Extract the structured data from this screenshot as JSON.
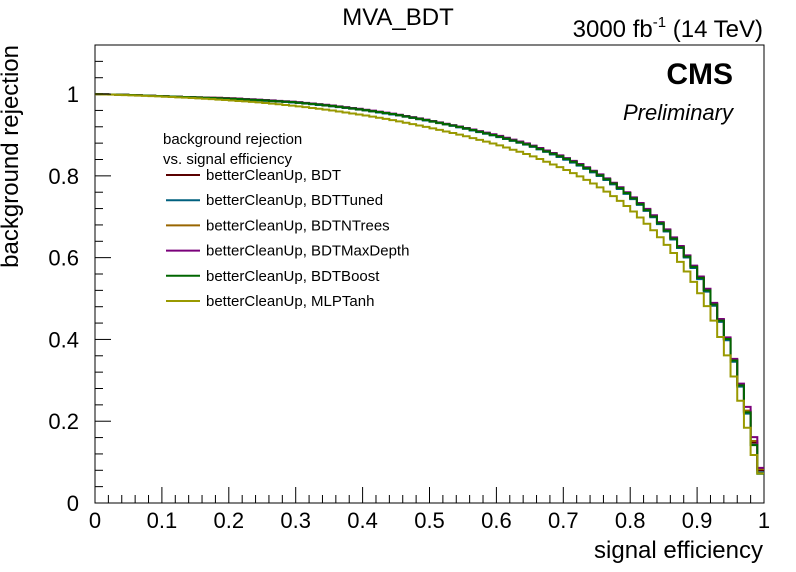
{
  "chart_data": {
    "type": "line",
    "title": "MVA_BDT",
    "lumi_label": {
      "prefix": "3000 fb",
      "superscript": "-1",
      "suffix": " (14 TeV)"
    },
    "experiment": "CMS",
    "experiment_status": "Preliminary",
    "xlabel": "signal efficiency",
    "ylabel": "background rejection",
    "xlim": [
      0,
      1
    ],
    "ylim": [
      0,
      1.12
    ],
    "x_ticks": [
      "0",
      "0.1",
      "0.2",
      "0.3",
      "0.4",
      "0.5",
      "0.6",
      "0.7",
      "0.8",
      "0.9",
      "1"
    ],
    "y_ticks": [
      "0",
      "0.2",
      "0.4",
      "0.6",
      "0.8",
      "1"
    ],
    "legend": {
      "header_line1": "background rejection",
      "header_line2": "vs. signal efficiency",
      "placement": "top-left"
    },
    "x": [
      0.0,
      0.05,
      0.1,
      0.15,
      0.2,
      0.25,
      0.3,
      0.35,
      0.4,
      0.45,
      0.5,
      0.55,
      0.6,
      0.65,
      0.7,
      0.72,
      0.74,
      0.76,
      0.78,
      0.8,
      0.82,
      0.84,
      0.86,
      0.88,
      0.9,
      0.91,
      0.92,
      0.93,
      0.94,
      0.95,
      0.96,
      0.97,
      0.98,
      0.99,
      1.0
    ],
    "series": [
      {
        "name": "betterCleanUp, BDT",
        "color": "#5a0000",
        "values": [
          1.0,
          0.998,
          0.995,
          0.992,
          0.99,
          0.985,
          0.98,
          0.972,
          0.962,
          0.95,
          0.935,
          0.918,
          0.898,
          0.875,
          0.845,
          0.831,
          0.815,
          0.797,
          0.776,
          0.752,
          0.725,
          0.694,
          0.658,
          0.616,
          0.566,
          0.537,
          0.505,
          0.468,
          0.426,
          0.378,
          0.321,
          0.256,
          0.19,
          0.105,
          0.055
        ]
      },
      {
        "name": "betterCleanUp, BDTTuned",
        "color": "#00607f",
        "values": [
          1.0,
          0.998,
          0.995,
          0.992,
          0.989,
          0.984,
          0.979,
          0.971,
          0.961,
          0.949,
          0.934,
          0.917,
          0.897,
          0.874,
          0.843,
          0.829,
          0.813,
          0.795,
          0.774,
          0.75,
          0.722,
          0.691,
          0.655,
          0.613,
          0.562,
          0.533,
          0.501,
          0.464,
          0.422,
          0.374,
          0.317,
          0.252,
          0.185,
          0.1,
          0.05
        ]
      },
      {
        "name": "betterCleanUp, BDTNTrees",
        "color": "#996600",
        "values": [
          1.0,
          0.998,
          0.995,
          0.992,
          0.99,
          0.985,
          0.98,
          0.972,
          0.962,
          0.95,
          0.935,
          0.918,
          0.899,
          0.876,
          0.846,
          0.832,
          0.816,
          0.798,
          0.777,
          0.753,
          0.726,
          0.695,
          0.659,
          0.617,
          0.567,
          0.538,
          0.506,
          0.469,
          0.427,
          0.379,
          0.322,
          0.257,
          0.195,
          0.108,
          0.058
        ]
      },
      {
        "name": "betterCleanUp, BDTMaxDepth",
        "color": "#7a007a",
        "values": [
          1.0,
          0.998,
          0.995,
          0.992,
          0.99,
          0.986,
          0.981,
          0.973,
          0.963,
          0.951,
          0.936,
          0.919,
          0.9,
          0.877,
          0.847,
          0.833,
          0.817,
          0.799,
          0.778,
          0.754,
          0.727,
          0.696,
          0.66,
          0.618,
          0.568,
          0.54,
          0.508,
          0.471,
          0.429,
          0.381,
          0.324,
          0.26,
          0.21,
          0.112,
          0.06
        ]
      },
      {
        "name": "betterCleanUp, BDTBoost",
        "color": "#006600",
        "values": [
          1.0,
          0.998,
          0.995,
          0.992,
          0.989,
          0.985,
          0.98,
          0.972,
          0.962,
          0.95,
          0.935,
          0.918,
          0.898,
          0.875,
          0.845,
          0.831,
          0.815,
          0.797,
          0.776,
          0.752,
          0.724,
          0.693,
          0.657,
          0.615,
          0.565,
          0.536,
          0.504,
          0.467,
          0.425,
          0.377,
          0.32,
          0.255,
          0.188,
          0.095,
          0.048
        ]
      },
      {
        "name": "betterCleanUp, MLPTanh",
        "color": "#999900",
        "values": [
          1.0,
          0.997,
          0.994,
          0.99,
          0.985,
          0.979,
          0.971,
          0.961,
          0.949,
          0.935,
          0.918,
          0.899,
          0.877,
          0.851,
          0.818,
          0.803,
          0.786,
          0.767,
          0.745,
          0.72,
          0.691,
          0.659,
          0.622,
          0.579,
          0.528,
          0.498,
          0.465,
          0.427,
          0.385,
          0.337,
          0.282,
          0.218,
          0.15,
          0.085,
          0.06
        ]
      }
    ]
  }
}
